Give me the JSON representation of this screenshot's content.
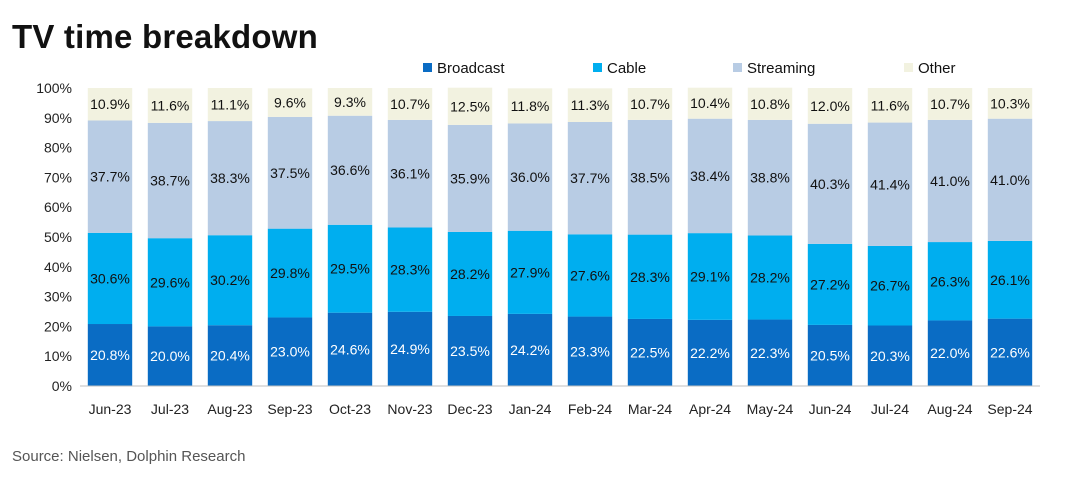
{
  "title": "TV time breakdown",
  "source": "Source:  Nielsen,  Dolphin Research",
  "colors": {
    "Broadcast": "#0A6CC4",
    "Cable": "#00AEEF",
    "Streaming": "#B8CCE4",
    "Other": "#F2F2E0"
  },
  "chart_data": {
    "type": "bar",
    "stacked": true,
    "categories": [
      "Jun-23",
      "Jul-23",
      "Aug-23",
      "Sep-23",
      "Oct-23",
      "Nov-23",
      "Dec-23",
      "Jan-24",
      "Feb-24",
      "Mar-24",
      "Apr-24",
      "May-24",
      "Jun-24",
      "Jul-24",
      "Aug-24",
      "Sep-24"
    ],
    "series": [
      {
        "name": "Broadcast",
        "values": [
          20.8,
          20.0,
          20.4,
          23.0,
          24.6,
          24.9,
          23.5,
          24.2,
          23.3,
          22.5,
          22.2,
          22.3,
          20.5,
          20.3,
          22.0,
          22.6
        ]
      },
      {
        "name": "Cable",
        "values": [
          30.6,
          29.6,
          30.2,
          29.8,
          29.5,
          28.3,
          28.2,
          27.9,
          27.6,
          28.3,
          29.1,
          28.2,
          27.2,
          26.7,
          26.3,
          26.1
        ]
      },
      {
        "name": "Streaming",
        "values": [
          37.7,
          38.7,
          38.3,
          37.5,
          36.6,
          36.1,
          35.9,
          36.0,
          37.7,
          38.5,
          38.4,
          38.8,
          40.3,
          41.4,
          41.0,
          41.0
        ]
      },
      {
        "name": "Other",
        "values": [
          10.9,
          11.6,
          11.1,
          9.6,
          9.3,
          10.7,
          12.5,
          11.8,
          11.3,
          10.7,
          10.4,
          10.8,
          12.0,
          11.6,
          10.7,
          10.3
        ]
      }
    ],
    "ylim": [
      0,
      100
    ],
    "yticks": [
      "0%",
      "10%",
      "20%",
      "30%",
      "40%",
      "50%",
      "60%",
      "70%",
      "80%",
      "90%",
      "100%"
    ],
    "value_suffix": "%",
    "legend_position": "top"
  }
}
